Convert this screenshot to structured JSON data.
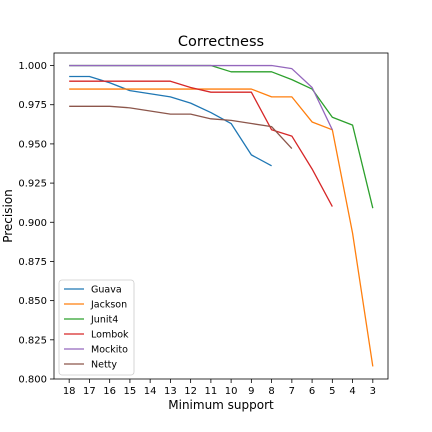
{
  "chart_data": {
    "type": "line",
    "title": "Correctness",
    "xlabel": "Minimum support",
    "ylabel": "Precision",
    "x": [
      18,
      17,
      16,
      15,
      14,
      13,
      12,
      11,
      10,
      9,
      8,
      7,
      6,
      5,
      4,
      3
    ],
    "x_ticks": [
      "18",
      "17",
      "16",
      "15",
      "14",
      "13",
      "12",
      "11",
      "10",
      "9",
      "8",
      "7",
      "6",
      "5",
      "4",
      "3"
    ],
    "x_reversed": true,
    "ylim": [
      0.8,
      1.008
    ],
    "y_ticks": [
      "0.800",
      "0.825",
      "0.850",
      "0.875",
      "0.900",
      "0.925",
      "0.950",
      "0.975",
      "1.000"
    ],
    "grid": false,
    "legend_position": "lower-left",
    "series": [
      {
        "name": "Guava",
        "color": "#1f77b4",
        "points": [
          [
            18,
            0.993
          ],
          [
            17,
            0.993
          ],
          [
            16,
            0.989
          ],
          [
            15,
            0.984
          ],
          [
            14,
            0.982
          ],
          [
            13,
            0.98
          ],
          [
            12,
            0.976
          ],
          [
            11,
            0.97
          ],
          [
            10,
            0.963
          ],
          [
            9,
            0.943
          ],
          [
            8,
            0.936
          ]
        ]
      },
      {
        "name": "Jackson",
        "color": "#ff7f0e",
        "points": [
          [
            18,
            0.985
          ],
          [
            17,
            0.985
          ],
          [
            16,
            0.985
          ],
          [
            15,
            0.985
          ],
          [
            14,
            0.985
          ],
          [
            13,
            0.985
          ],
          [
            12,
            0.985
          ],
          [
            11,
            0.985
          ],
          [
            10,
            0.985
          ],
          [
            9,
            0.985
          ],
          [
            8,
            0.98
          ],
          [
            7,
            0.98
          ],
          [
            6,
            0.964
          ],
          [
            5,
            0.959
          ],
          [
            4,
            0.893
          ],
          [
            3,
            0.808
          ]
        ]
      },
      {
        "name": "Junit4",
        "color": "#2ca02c",
        "points": [
          [
            18,
            1.0
          ],
          [
            17,
            1.0
          ],
          [
            16,
            1.0
          ],
          [
            15,
            1.0
          ],
          [
            14,
            1.0
          ],
          [
            13,
            1.0
          ],
          [
            12,
            1.0
          ],
          [
            11,
            1.0
          ],
          [
            10,
            0.996
          ],
          [
            9,
            0.996
          ],
          [
            8,
            0.996
          ],
          [
            7,
            0.991
          ],
          [
            6,
            0.985
          ],
          [
            5,
            0.967
          ],
          [
            4,
            0.962
          ],
          [
            3,
            0.909
          ]
        ]
      },
      {
        "name": "Lombok",
        "color": "#d62728",
        "points": [
          [
            18,
            0.99
          ],
          [
            17,
            0.99
          ],
          [
            16,
            0.99
          ],
          [
            15,
            0.99
          ],
          [
            14,
            0.99
          ],
          [
            13,
            0.99
          ],
          [
            12,
            0.986
          ],
          [
            11,
            0.983
          ],
          [
            10,
            0.983
          ],
          [
            9,
            0.983
          ],
          [
            8,
            0.959
          ],
          [
            7,
            0.955
          ],
          [
            6,
            0.934
          ],
          [
            5,
            0.91
          ]
        ]
      },
      {
        "name": "Mockito",
        "color": "#9467bd",
        "points": [
          [
            18,
            1.0
          ],
          [
            17,
            1.0
          ],
          [
            16,
            1.0
          ],
          [
            15,
            1.0
          ],
          [
            14,
            1.0
          ],
          [
            13,
            1.0
          ],
          [
            12,
            1.0
          ],
          [
            11,
            1.0
          ],
          [
            10,
            1.0
          ],
          [
            9,
            1.0
          ],
          [
            8,
            1.0
          ],
          [
            7,
            0.998
          ],
          [
            6,
            0.986
          ],
          [
            5,
            0.959
          ]
        ]
      },
      {
        "name": "Netty",
        "color": "#8c564b",
        "points": [
          [
            18,
            0.974
          ],
          [
            17,
            0.974
          ],
          [
            16,
            0.974
          ],
          [
            15,
            0.973
          ],
          [
            14,
            0.971
          ],
          [
            13,
            0.969
          ],
          [
            12,
            0.969
          ],
          [
            11,
            0.966
          ],
          [
            10,
            0.965
          ],
          [
            9,
            0.963
          ],
          [
            8,
            0.961
          ],
          [
            7,
            0.947
          ]
        ]
      }
    ]
  }
}
